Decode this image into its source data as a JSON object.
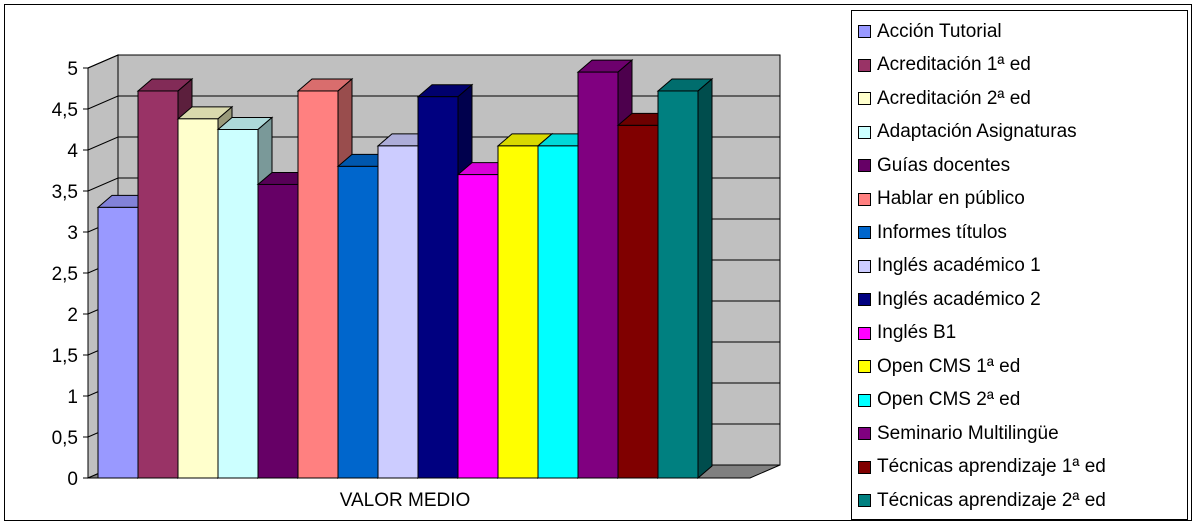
{
  "chart_data": {
    "type": "bar",
    "categories": [
      "VALOR MEDIO"
    ],
    "series": [
      {
        "name": "Acción Tutorial",
        "values": [
          3.3
        ],
        "color": "#9999FF"
      },
      {
        "name": "Acreditación 1ª ed",
        "values": [
          4.72
        ],
        "color": "#993366"
      },
      {
        "name": "Acreditación 2ª ed",
        "values": [
          4.38
        ],
        "color": "#FFFFCC"
      },
      {
        "name": "Adaptación Asignaturas",
        "values": [
          4.25
        ],
        "color": "#CCFFFF"
      },
      {
        "name": "Guías docentes",
        "values": [
          3.58
        ],
        "color": "#660066"
      },
      {
        "name": "Hablar en público",
        "values": [
          4.72
        ],
        "color": "#FF8080"
      },
      {
        "name": "Informes títulos",
        "values": [
          3.8
        ],
        "color": "#0066CC"
      },
      {
        "name": "Inglés académico 1",
        "values": [
          4.05
        ],
        "color": "#CCCCFF"
      },
      {
        "name": "Inglés académico 2",
        "values": [
          4.65
        ],
        "color": "#000080"
      },
      {
        "name": "Inglés B1",
        "values": [
          3.7
        ],
        "color": "#FF00FF"
      },
      {
        "name": "Open CMS 1ª ed",
        "values": [
          4.05
        ],
        "color": "#FFFF00"
      },
      {
        "name": "Open CMS 2ª ed",
        "values": [
          4.05
        ],
        "color": "#00FFFF"
      },
      {
        "name": "Seminario Multilingüe",
        "values": [
          4.95
        ],
        "color": "#800080"
      },
      {
        "name": "Técnicas aprendizaje 1ª ed",
        "values": [
          4.3
        ],
        "color": "#800000"
      },
      {
        "name": "Técnicas aprendizaje 2ª ed",
        "values": [
          4.72
        ],
        "color": "#008080"
      }
    ],
    "yticks": [
      "0",
      "0,5",
      "1",
      "1,5",
      "2",
      "2,5",
      "3",
      "3,5",
      "4",
      "4,5",
      "5"
    ],
    "ylim": [
      0,
      5
    ],
    "grid": true,
    "legend": "right",
    "wall_color": "#C0C0C0",
    "floor_color": "#808080"
  }
}
